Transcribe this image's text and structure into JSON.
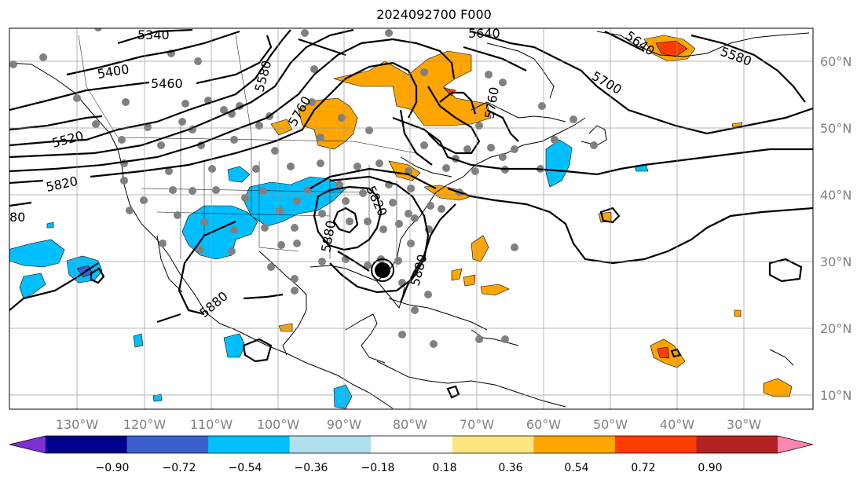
{
  "title": "2024092700 F000",
  "map": {
    "lon_labels": [
      "130°W",
      "120°W",
      "110°W",
      "100°W",
      "90°W",
      "80°W",
      "70°W",
      "60°W",
      "50°W",
      "40°W",
      "30°W"
    ],
    "lat_labels": [
      "60°N",
      "50°N",
      "40°N",
      "30°N",
      "20°N",
      "10°N"
    ],
    "contour_labels": [
      "5340",
      "5400",
      "5460",
      "5520",
      "5580",
      "5580",
      "5640",
      "5640",
      "5700",
      "5820",
      "5820",
      "5880",
      "5880",
      "5880",
      "5760",
      "80",
      "5760"
    ]
  },
  "colorbar": {
    "ticks": [
      "−0.90",
      "−0.72",
      "−0.54",
      "−0.36",
      "−0.18",
      "0.18",
      "0.36",
      "0.54",
      "0.72",
      "0.90"
    ],
    "colors": [
      "#7e2fd8",
      "#00008b",
      "#3a5fcd",
      "#00bfff",
      "#b2dfee",
      "#ffffff",
      "#fce680",
      "#ffa500",
      "#ff3d00",
      "#b22222",
      "#ff85b3"
    ]
  }
}
